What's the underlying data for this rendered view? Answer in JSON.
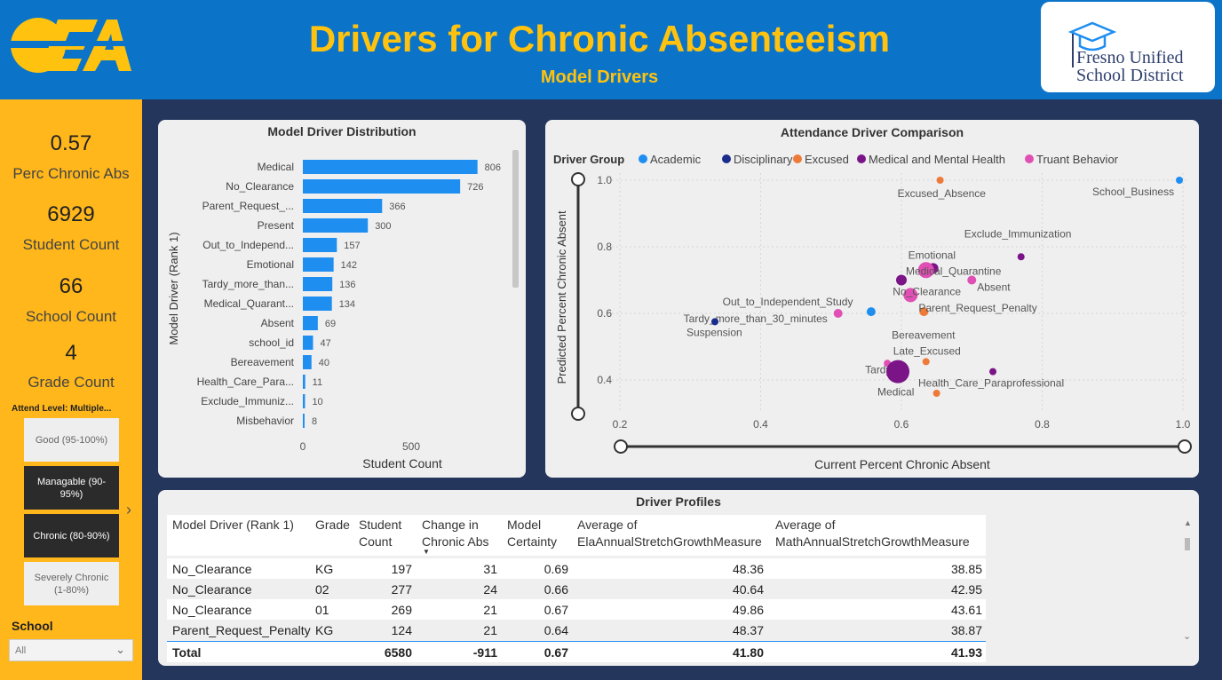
{
  "header": {
    "title": "Drivers for Chronic Absenteeism",
    "subtitle": "Model Drivers",
    "brand_line1": "Fresno Unified",
    "brand_line2": "School District"
  },
  "sidebar": {
    "kpis": [
      {
        "value": "0.57",
        "label": "Perc Chronic Abs"
      },
      {
        "value": "6929",
        "label": "Student Count"
      },
      {
        "value": "66",
        "label": "School Count"
      },
      {
        "value": "4",
        "label": "Grade Count"
      }
    ],
    "attend_label": "Attend Level: Multiple...",
    "levels": [
      {
        "label": "Good (95-100%)",
        "selected": false
      },
      {
        "label": "Managable (90-95%)",
        "selected": true
      },
      {
        "label": "Chronic (80-90%)",
        "selected": true
      },
      {
        "label": "Severely Chronic (1-80%)",
        "selected": false
      }
    ],
    "school_label": "School",
    "school_value": "All"
  },
  "bar_chart": {
    "card_title": "Model Driver Distribution",
    "chart_data": {
      "type": "bar",
      "orientation": "horizontal",
      "categories": [
        "Medical",
        "No_Clearance",
        "Parent_Request_...",
        "Present",
        "Out_to_Independ...",
        "Emotional",
        "Tardy_more_than...",
        "Medical_Quarant...",
        "Absent",
        "school_id",
        "Bereavement",
        "Health_Care_Para...",
        "Exclude_Immuniz...",
        "Misbehavior"
      ],
      "values": [
        806,
        726,
        366,
        300,
        157,
        142,
        136,
        134,
        69,
        47,
        40,
        11,
        10,
        8
      ],
      "xlabel": "Student Count",
      "ylabel": "Model Driver (Rank 1)",
      "xlim": [
        0,
        900
      ],
      "xticks": [
        0,
        500
      ],
      "bar_color": "#1f8ef1"
    }
  },
  "scatter_chart": {
    "card_title": "Attendance Driver Comparison",
    "legend_title": "Driver Group",
    "chart_data": {
      "type": "scatter",
      "xlabel": "Current Percent Chronic Absent",
      "ylabel": "Predicted Percent Chronic Absent",
      "xlim": [
        0.2,
        1.0
      ],
      "ylim": [
        0.35,
        1.0
      ],
      "xticks": [
        "0.2",
        "0.4",
        "0.6",
        "0.8",
        "1.0"
      ],
      "yticks": [
        "0.4",
        "0.6",
        "0.8",
        "1.0"
      ],
      "series": [
        {
          "name": "Academic",
          "color": "#1f8ef1"
        },
        {
          "name": "Disciplinary",
          "color": "#1a2c8c"
        },
        {
          "name": "Excused",
          "color": "#ee7a3a"
        },
        {
          "name": "Medical and Mental Health",
          "color": "#7a1487"
        },
        {
          "name": "Truant Behavior",
          "color": "#e04fb4"
        }
      ],
      "points": [
        {
          "label": "School_Business",
          "x": 0.995,
          "y": 1.0,
          "group": 0,
          "size": 4
        },
        {
          "label": "Excused_Absence",
          "x": 0.655,
          "y": 1.0,
          "group": 2,
          "size": 4
        },
        {
          "label": "Exclude_Immunization",
          "x": 0.77,
          "y": 0.77,
          "group": 3,
          "size": 4
        },
        {
          "label": "Emotional",
          "x": 0.645,
          "y": 0.735,
          "group": 3,
          "size": 6
        },
        {
          "label": "",
          "x": 0.635,
          "y": 0.73,
          "group": 4,
          "size": 9
        },
        {
          "label": "Medical_Quarantine",
          "x": 0.6,
          "y": 0.7,
          "group": 3,
          "size": 6
        },
        {
          "label": "Absent",
          "x": 0.7,
          "y": 0.7,
          "group": 4,
          "size": 5
        },
        {
          "label": "No_Clearance",
          "x": 0.613,
          "y": 0.655,
          "group": 4,
          "size": 8
        },
        {
          "label": "",
          "x": 0.557,
          "y": 0.605,
          "group": 0,
          "size": 5
        },
        {
          "label": "Parent_Request_Penalty",
          "x": 0.632,
          "y": 0.605,
          "group": 2,
          "size": 5
        },
        {
          "label": "Out_to_Independent_Study",
          "x": 0.51,
          "y": 0.6,
          "group": 4,
          "size": 5
        },
        {
          "label": "Tardy_more_than_30_minutes",
          "x": 0.51,
          "y": 0.6,
          "group": 4,
          "size": 0
        },
        {
          "label": "Suspension",
          "x": 0.335,
          "y": 0.575,
          "group": 1,
          "size": 4
        },
        {
          "label": "Bereavement",
          "x": 0.633,
          "y": 0.575,
          "group": 2,
          "size": 0
        },
        {
          "label": "Late_Excused",
          "x": 0.635,
          "y": 0.455,
          "group": 2,
          "size": 4
        },
        {
          "label": "Tardy",
          "x": 0.58,
          "y": 0.45,
          "group": 4,
          "size": 4
        },
        {
          "label": "Medical",
          "x": 0.595,
          "y": 0.425,
          "group": 3,
          "size": 13
        },
        {
          "label": "Health_Care_Paraprofessional",
          "x": 0.73,
          "y": 0.425,
          "group": 3,
          "size": 4
        },
        {
          "label": "",
          "x": 0.65,
          "y": 0.36,
          "group": 2,
          "size": 4
        }
      ]
    }
  },
  "table": {
    "card_title": "Driver Profiles",
    "columns": [
      {
        "line1": "Model Driver (Rank 1)",
        "line2": ""
      },
      {
        "line1": "Grade",
        "line2": ""
      },
      {
        "line1": "Student",
        "line2": "Count"
      },
      {
        "line1": "Change in",
        "line2": "Chronic Abs"
      },
      {
        "line1": "Model",
        "line2": "Certainty"
      },
      {
        "line1": "Average of",
        "line2": "ElaAnnualStretchGrowthMeasure"
      },
      {
        "line1": "Average of",
        "line2": "MathAnnualStretchGrowthMeasure"
      }
    ],
    "rows": [
      [
        "No_Clearance",
        "KG",
        "197",
        "31",
        "0.69",
        "48.36",
        "38.85"
      ],
      [
        "No_Clearance",
        "02",
        "277",
        "24",
        "0.66",
        "40.64",
        "42.95"
      ],
      [
        "No_Clearance",
        "01",
        "269",
        "21",
        "0.67",
        "49.86",
        "43.61"
      ],
      [
        "Parent_Request_Penalty",
        "KG",
        "124",
        "21",
        "0.64",
        "48.37",
        "38.87"
      ]
    ],
    "total": [
      "Total",
      "",
      "6580",
      "-911",
      "0.67",
      "41.80",
      "41.93"
    ]
  }
}
